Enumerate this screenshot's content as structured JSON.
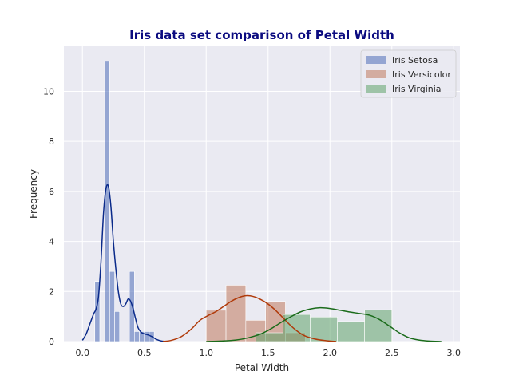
{
  "chart_data": {
    "type": "histogram_kde",
    "title": "Iris data set comparison of Petal Width",
    "xlabel": "Petal Width",
    "ylabel": "Frequency",
    "xlim": [
      -0.15,
      3.05
    ],
    "ylim": [
      0,
      11.8
    ],
    "xticks": [
      0.0,
      0.5,
      1.0,
      1.5,
      2.0,
      2.5,
      3.0
    ],
    "xtick_labels": [
      "0.0",
      "0.5",
      "1.0",
      "1.5",
      "2.0",
      "2.5",
      "3.0"
    ],
    "yticks": [
      0,
      2,
      4,
      6,
      8,
      10
    ],
    "ytick_labels": [
      "0",
      "2",
      "4",
      "6",
      "8",
      "10"
    ],
    "grid": true,
    "legend_position": "top-right",
    "series": [
      {
        "name": "Iris Setosa",
        "color": "#4c6cb8",
        "kde_color": "#0a2a8a",
        "bins": [
          {
            "x0": 0.1,
            "x1": 0.14,
            "y": 2.4
          },
          {
            "x0": 0.14,
            "x1": 0.18,
            "y": 0.0
          },
          {
            "x0": 0.18,
            "x1": 0.22,
            "y": 11.2
          },
          {
            "x0": 0.22,
            "x1": 0.26,
            "y": 2.8
          },
          {
            "x0": 0.26,
            "x1": 0.3,
            "y": 1.2
          },
          {
            "x0": 0.3,
            "x1": 0.34,
            "y": 0.0
          },
          {
            "x0": 0.34,
            "x1": 0.38,
            "y": 0.0
          },
          {
            "x0": 0.38,
            "x1": 0.42,
            "y": 2.8
          },
          {
            "x0": 0.42,
            "x1": 0.46,
            "y": 0.4
          },
          {
            "x0": 0.46,
            "x1": 0.5,
            "y": 0.4
          },
          {
            "x0": 0.5,
            "x1": 0.54,
            "y": 0.4
          },
          {
            "x0": 0.54,
            "x1": 0.58,
            "y": 0.4
          }
        ],
        "kde": [
          [
            0.0,
            0.05
          ],
          [
            0.03,
            0.3
          ],
          [
            0.06,
            0.7
          ],
          [
            0.09,
            1.1
          ],
          [
            0.11,
            1.3
          ],
          [
            0.13,
            1.8
          ],
          [
            0.15,
            3.2
          ],
          [
            0.17,
            5.1
          ],
          [
            0.19,
            6.1
          ],
          [
            0.21,
            6.2
          ],
          [
            0.23,
            5.4
          ],
          [
            0.25,
            4.0
          ],
          [
            0.27,
            2.9
          ],
          [
            0.29,
            2.0
          ],
          [
            0.31,
            1.5
          ],
          [
            0.33,
            1.4
          ],
          [
            0.35,
            1.5
          ],
          [
            0.37,
            1.7
          ],
          [
            0.39,
            1.6
          ],
          [
            0.41,
            1.3
          ],
          [
            0.43,
            0.9
          ],
          [
            0.45,
            0.55
          ],
          [
            0.48,
            0.35
          ],
          [
            0.52,
            0.28
          ],
          [
            0.56,
            0.2
          ],
          [
            0.6,
            0.08
          ],
          [
            0.64,
            0.02
          ],
          [
            0.68,
            0.0
          ]
        ]
      },
      {
        "name": "Iris Versicolor",
        "color": "#c0785c",
        "kde_color": "#b03a0a",
        "bins": [
          {
            "x0": 1.0,
            "x1": 1.16,
            "y": 1.25
          },
          {
            "x0": 1.16,
            "x1": 1.32,
            "y": 2.25
          },
          {
            "x0": 1.32,
            "x1": 1.48,
            "y": 0.85
          },
          {
            "x0": 1.48,
            "x1": 1.64,
            "y": 1.6
          },
          {
            "x0": 1.64,
            "x1": 1.8,
            "y": 0.35
          }
        ],
        "kde": [
          [
            0.65,
            0.0
          ],
          [
            0.72,
            0.05
          ],
          [
            0.8,
            0.2
          ],
          [
            0.88,
            0.5
          ],
          [
            0.95,
            0.85
          ],
          [
            1.02,
            1.05
          ],
          [
            1.08,
            1.2
          ],
          [
            1.14,
            1.4
          ],
          [
            1.2,
            1.6
          ],
          [
            1.26,
            1.75
          ],
          [
            1.32,
            1.83
          ],
          [
            1.38,
            1.8
          ],
          [
            1.44,
            1.68
          ],
          [
            1.5,
            1.5
          ],
          [
            1.56,
            1.25
          ],
          [
            1.62,
            0.95
          ],
          [
            1.68,
            0.65
          ],
          [
            1.74,
            0.4
          ],
          [
            1.8,
            0.22
          ],
          [
            1.88,
            0.1
          ],
          [
            1.96,
            0.04
          ],
          [
            2.05,
            0.0
          ]
        ]
      },
      {
        "name": "Iris Virginia",
        "color": "#5fa26a",
        "kde_color": "#1a6b1a",
        "bins": [
          {
            "x0": 1.4,
            "x1": 1.62,
            "y": 0.35
          },
          {
            "x0": 1.62,
            "x1": 1.84,
            "y": 1.08
          },
          {
            "x0": 1.84,
            "x1": 2.06,
            "y": 0.98
          },
          {
            "x0": 2.06,
            "x1": 2.28,
            "y": 0.8
          },
          {
            "x0": 2.28,
            "x1": 2.5,
            "y": 1.27
          }
        ],
        "kde": [
          [
            1.0,
            0.0
          ],
          [
            1.12,
            0.02
          ],
          [
            1.24,
            0.06
          ],
          [
            1.34,
            0.15
          ],
          [
            1.44,
            0.3
          ],
          [
            1.52,
            0.5
          ],
          [
            1.6,
            0.75
          ],
          [
            1.68,
            0.98
          ],
          [
            1.76,
            1.18
          ],
          [
            1.84,
            1.3
          ],
          [
            1.92,
            1.35
          ],
          [
            2.0,
            1.32
          ],
          [
            2.08,
            1.25
          ],
          [
            2.16,
            1.18
          ],
          [
            2.24,
            1.12
          ],
          [
            2.32,
            1.05
          ],
          [
            2.4,
            0.88
          ],
          [
            2.48,
            0.62
          ],
          [
            2.56,
            0.35
          ],
          [
            2.64,
            0.15
          ],
          [
            2.72,
            0.06
          ],
          [
            2.8,
            0.02
          ],
          [
            2.9,
            0.0
          ]
        ]
      }
    ]
  }
}
